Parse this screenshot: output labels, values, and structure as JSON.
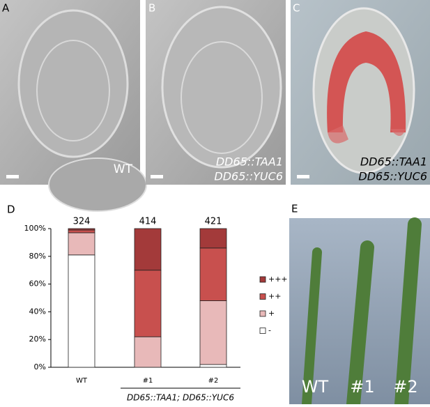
{
  "panels": [
    {
      "letter": "A",
      "labels": [
        "WT"
      ]
    },
    {
      "letter": "B",
      "labels": [
        "DD65::TAA1",
        "DD65::YUC6"
      ]
    },
    {
      "letter": "C",
      "labels": [
        "DD65::TAA1",
        "DD65::YUC6"
      ]
    }
  ],
  "panel_d": {
    "letter": "D"
  },
  "panel_e": {
    "letter": "E",
    "labels": [
      "WT",
      "#1",
      "#2"
    ]
  },
  "chart_data": {
    "type": "stacked_bar",
    "categories": [
      "WT",
      "#1",
      "#2"
    ],
    "top_labels": [
      "324",
      "414",
      "421"
    ],
    "group_label": "DD65::TAA1; DD65::YUC6",
    "series": [
      {
        "name": "-",
        "color": "#ffffff",
        "values": [
          81,
          0,
          2
        ]
      },
      {
        "name": "+",
        "color": "#e8b9b9",
        "values": [
          16,
          22,
          46
        ]
      },
      {
        "name": "++",
        "color": "#c8504e",
        "values": [
          2,
          48,
          38
        ]
      },
      {
        "name": "+++",
        "color": "#a33a3a",
        "values": [
          1,
          30,
          14
        ]
      }
    ],
    "ylim": [
      0,
      100
    ],
    "yticks": [
      {
        "value": 0,
        "label": "0%"
      },
      {
        "value": 20,
        "label": "20%"
      },
      {
        "value": 40,
        "label": "40%"
      },
      {
        "value": 60,
        "label": "60%"
      },
      {
        "value": 80,
        "label": "80%"
      },
      {
        "value": 100,
        "label": "100%"
      }
    ],
    "grid": false,
    "legend": "right"
  }
}
